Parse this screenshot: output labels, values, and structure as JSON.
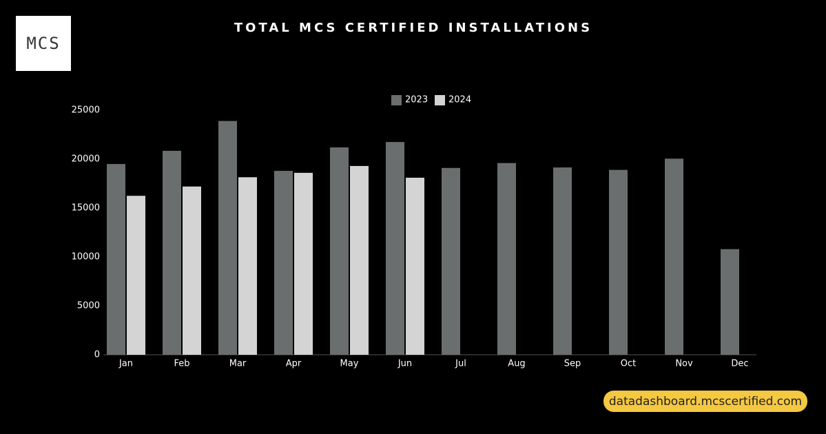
{
  "logo": "MCS",
  "url": "datadashboard.mcscertified.com",
  "chart_data": {
    "type": "bar",
    "title": "TOTAL MCS CERTIFIED INSTALLATIONS",
    "categories": [
      "Jan",
      "Feb",
      "Mar",
      "Apr",
      "May",
      "Jun",
      "Jul",
      "Aug",
      "Sep",
      "Oct",
      "Nov",
      "Dec"
    ],
    "series": [
      {
        "name": "2023",
        "color": "#6b6e6e",
        "values": [
          19500,
          20850,
          23900,
          18800,
          21200,
          21750,
          19100,
          19600,
          19150,
          18900,
          20050,
          10800
        ]
      },
      {
        "name": "2024",
        "color": "#d4d4d4",
        "values": [
          16250,
          17200,
          18150,
          18600,
          19300,
          18100,
          null,
          null,
          null,
          null,
          null,
          null
        ]
      }
    ],
    "ylim": [
      0,
      25000
    ],
    "yticks": [
      0,
      5000,
      10000,
      15000,
      20000,
      25000
    ],
    "grid": false,
    "legend": "top"
  }
}
